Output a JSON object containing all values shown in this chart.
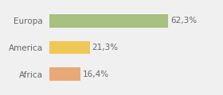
{
  "categories": [
    "Europa",
    "America",
    "Africa"
  ],
  "values": [
    62.3,
    21.3,
    16.4
  ],
  "labels": [
    "62,3%",
    "21,3%",
    "16,4%"
  ],
  "bar_colors": [
    "#a8c080",
    "#f0c857",
    "#e8a878"
  ],
  "background_color": "#f0f0f0",
  "xlim": [
    0,
    85
  ],
  "bar_height": 0.5,
  "label_fontsize": 7.5,
  "tick_fontsize": 7.5,
  "tick_color": "#666666"
}
